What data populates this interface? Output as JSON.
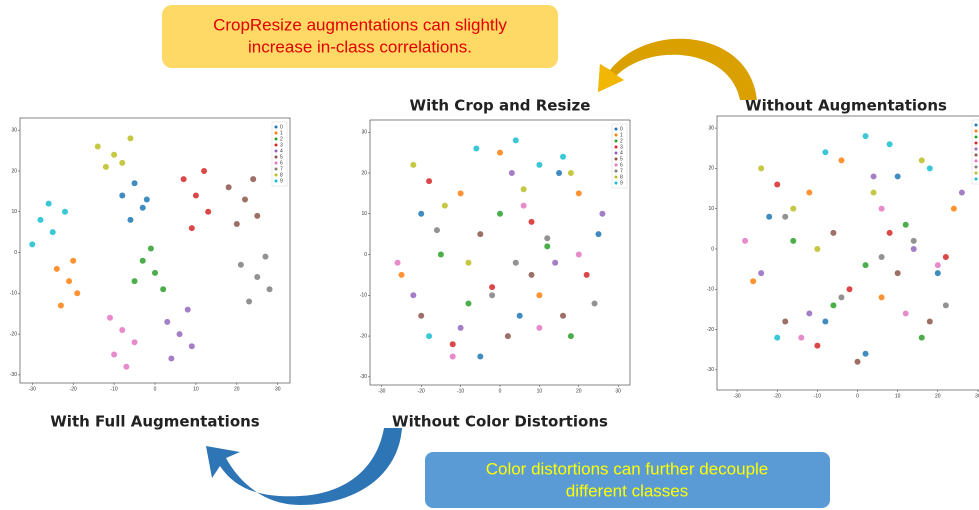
{
  "callouts": {
    "top": [
      "CropResize augmentations can slightly",
      "increase in-class correlations."
    ],
    "bottom": [
      "Color distortions can further decouple",
      "different classes"
    ]
  },
  "chart_data": [
    {
      "type": "scatter",
      "caption": "With Full Augmentations",
      "xlim": [
        -33,
        33
      ],
      "ylim": [
        -32,
        33
      ],
      "xticks": [
        -30,
        -20,
        -10,
        0,
        10,
        20,
        30
      ],
      "yticks": [
        -30,
        -20,
        -10,
        0,
        10,
        20,
        30
      ],
      "series": [
        {
          "name": "0",
          "color": "#1f77b4",
          "x": [
            -8,
            -5,
            -3,
            -6,
            -2
          ],
          "y": [
            14,
            17,
            11,
            8,
            13
          ]
        },
        {
          "name": "1",
          "color": "#ff7f0e",
          "x": [
            -24,
            -21,
            -19,
            -23,
            -20
          ],
          "y": [
            -4,
            -7,
            -10,
            -13,
            -2
          ]
        },
        {
          "name": "2",
          "color": "#2ca02c",
          "x": [
            -3,
            0,
            -1,
            -5,
            2
          ],
          "y": [
            -2,
            -5,
            1,
            -7,
            -9
          ]
        },
        {
          "name": "3",
          "color": "#d62728",
          "x": [
            7,
            10,
            13,
            9,
            12
          ],
          "y": [
            18,
            14,
            10,
            6,
            20
          ]
        },
        {
          "name": "4",
          "color": "#9467bd",
          "x": [
            3,
            6,
            9,
            4,
            8
          ],
          "y": [
            -17,
            -20,
            -23,
            -26,
            -14
          ]
        },
        {
          "name": "5",
          "color": "#8c564b",
          "x": [
            18,
            22,
            25,
            20,
            24
          ],
          "y": [
            16,
            13,
            9,
            7,
            18
          ]
        },
        {
          "name": "6",
          "color": "#e377c2",
          "x": [
            -11,
            -8,
            -5,
            -10,
            -7
          ],
          "y": [
            -16,
            -19,
            -22,
            -25,
            -28
          ]
        },
        {
          "name": "7",
          "color": "#7f7f7f",
          "x": [
            21,
            25,
            28,
            23,
            27
          ],
          "y": [
            -3,
            -6,
            -9,
            -12,
            -1
          ]
        },
        {
          "name": "8",
          "color": "#bcbd22",
          "x": [
            -14,
            -10,
            -6,
            -12,
            -8
          ],
          "y": [
            26,
            24,
            28,
            21,
            22
          ]
        },
        {
          "name": "9",
          "color": "#17becf",
          "x": [
            -28,
            -25,
            -22,
            -30,
            -26
          ],
          "y": [
            8,
            5,
            10,
            2,
            12
          ]
        }
      ]
    },
    {
      "type": "scatter",
      "title": "With Crop and Resize",
      "caption": "Without Color Distortions",
      "xlim": [
        -33,
        33
      ],
      "ylim": [
        -32,
        33
      ],
      "xticks": [
        -30,
        -20,
        -10,
        0,
        10,
        20,
        30
      ],
      "yticks": [
        -30,
        -20,
        -10,
        0,
        10,
        20,
        30
      ],
      "series": [
        {
          "name": "0",
          "color": "#1f77b4",
          "x": [
            -20,
            5,
            15,
            -5,
            25
          ],
          "y": [
            10,
            -15,
            20,
            -25,
            5
          ]
        },
        {
          "name": "1",
          "color": "#ff7f0e",
          "x": [
            -25,
            -10,
            10,
            20,
            0
          ],
          "y": [
            -5,
            15,
            -10,
            15,
            25
          ]
        },
        {
          "name": "2",
          "color": "#2ca02c",
          "x": [
            -15,
            0,
            18,
            -8,
            12
          ],
          "y": [
            0,
            10,
            -20,
            -12,
            2
          ]
        },
        {
          "name": "3",
          "color": "#d62728",
          "x": [
            -18,
            -2,
            8,
            22,
            -12
          ],
          "y": [
            18,
            -8,
            8,
            -5,
            -22
          ]
        },
        {
          "name": "4",
          "color": "#9467bd",
          "x": [
            -10,
            3,
            14,
            26,
            -22
          ],
          "y": [
            -18,
            20,
            -2,
            10,
            -10
          ]
        },
        {
          "name": "5",
          "color": "#8c564b",
          "x": [
            -5,
            8,
            -20,
            16,
            2
          ],
          "y": [
            5,
            -5,
            -15,
            -15,
            -20
          ]
        },
        {
          "name": "6",
          "color": "#e377c2",
          "x": [
            -12,
            6,
            20,
            -26,
            10
          ],
          "y": [
            -25,
            12,
            0,
            -2,
            -18
          ]
        },
        {
          "name": "7",
          "color": "#7f7f7f",
          "x": [
            -2,
            12,
            24,
            -16,
            4
          ],
          "y": [
            -10,
            4,
            -12,
            6,
            -2
          ]
        },
        {
          "name": "8",
          "color": "#bcbd22",
          "x": [
            -22,
            -8,
            6,
            18,
            -14
          ],
          "y": [
            22,
            -2,
            16,
            20,
            12
          ]
        },
        {
          "name": "9",
          "color": "#17becf",
          "x": [
            -6,
            4,
            16,
            -18,
            10
          ],
          "y": [
            26,
            28,
            24,
            -20,
            22
          ]
        }
      ]
    },
    {
      "type": "scatter",
      "title": "Without Augmentations",
      "xlim": [
        -35,
        33
      ],
      "ylim": [
        -35,
        33
      ],
      "xticks": [
        -30,
        -20,
        -10,
        0,
        10,
        20,
        30
      ],
      "yticks": [
        -30,
        -20,
        -10,
        0,
        10,
        20,
        30
      ],
      "series": [
        {
          "name": "0",
          "color": "#1f77b4",
          "x": [
            -22,
            -8,
            10,
            20,
            2
          ],
          "y": [
            8,
            -18,
            18,
            -6,
            -26
          ]
        },
        {
          "name": "1",
          "color": "#ff7f0e",
          "x": [
            -26,
            -12,
            6,
            24,
            -4
          ],
          "y": [
            -8,
            14,
            -12,
            10,
            22
          ]
        },
        {
          "name": "2",
          "color": "#2ca02c",
          "x": [
            -16,
            2,
            16,
            -6,
            12
          ],
          "y": [
            2,
            -4,
            -22,
            -14,
            6
          ]
        },
        {
          "name": "3",
          "color": "#d62728",
          "x": [
            -20,
            -2,
            8,
            22,
            -10
          ],
          "y": [
            16,
            -10,
            4,
            -2,
            -24
          ]
        },
        {
          "name": "4",
          "color": "#9467bd",
          "x": [
            -12,
            4,
            14,
            26,
            -24
          ],
          "y": [
            -16,
            18,
            0,
            14,
            -6
          ]
        },
        {
          "name": "5",
          "color": "#8c564b",
          "x": [
            -6,
            10,
            -18,
            18,
            0
          ],
          "y": [
            4,
            -6,
            -18,
            -18,
            -28
          ]
        },
        {
          "name": "6",
          "color": "#e377c2",
          "x": [
            -14,
            6,
            20,
            -28,
            12
          ],
          "y": [
            -22,
            10,
            -4,
            2,
            -16
          ]
        },
        {
          "name": "7",
          "color": "#7f7f7f",
          "x": [
            -4,
            14,
            22,
            -18,
            6
          ],
          "y": [
            -12,
            2,
            -14,
            8,
            -2
          ]
        },
        {
          "name": "8",
          "color": "#bcbd22",
          "x": [
            -24,
            -10,
            4,
            16,
            -16
          ],
          "y": [
            20,
            0,
            14,
            22,
            10
          ]
        },
        {
          "name": "9",
          "color": "#17becf",
          "x": [
            -8,
            2,
            18,
            -20,
            8
          ],
          "y": [
            24,
            28,
            20,
            -22,
            26
          ]
        }
      ]
    }
  ]
}
